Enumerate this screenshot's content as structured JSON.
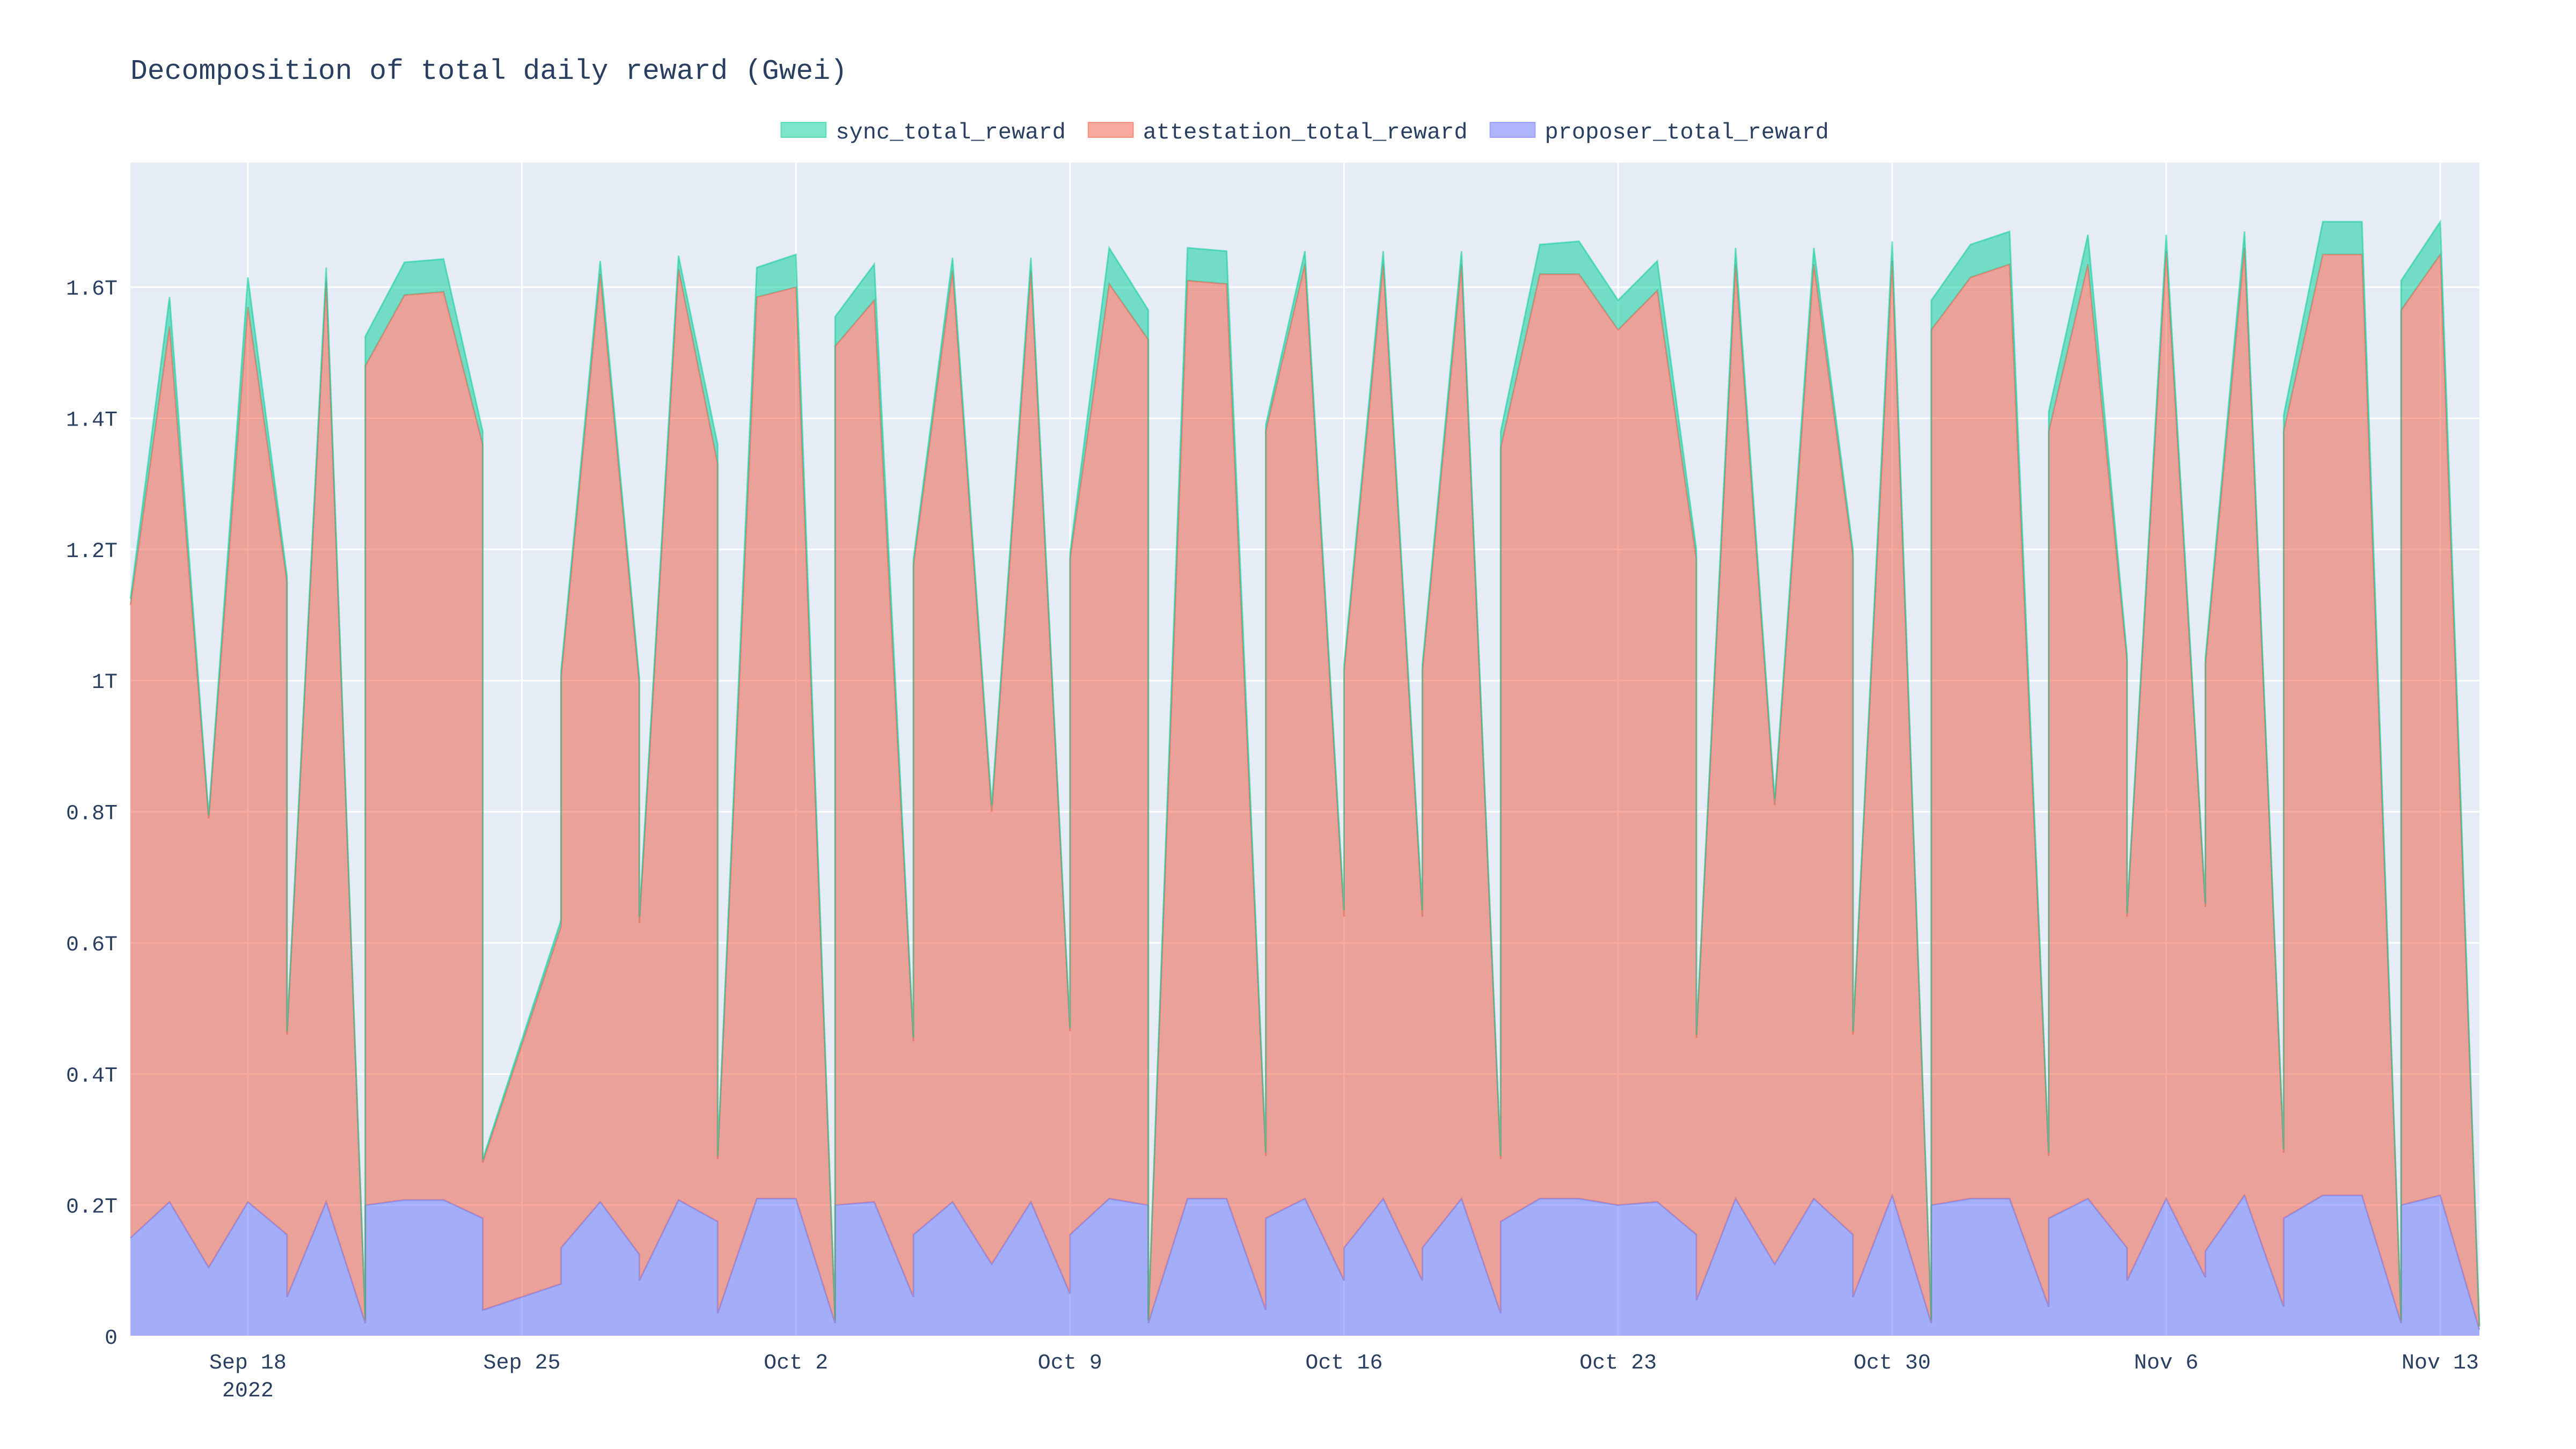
{
  "chart_data": {
    "type": "area",
    "stacked": true,
    "title": "Decomposition of total daily reward (Gwei)",
    "xlabel": "",
    "ylabel": "",
    "x_start": "2022-09-15",
    "x_end": "2022-11-14",
    "ylim": [
      0,
      1.79
    ],
    "y_unit": "T",
    "grid": true,
    "legend_placement": "top-center",
    "x_ticks": [
      {
        "date": "2022-09-18",
        "label": "Sep 18",
        "sublabel": "2022"
      },
      {
        "date": "2022-09-25",
        "label": "Sep 25",
        "sublabel": ""
      },
      {
        "date": "2022-10-02",
        "label": "Oct 2",
        "sublabel": ""
      },
      {
        "date": "2022-10-09",
        "label": "Oct 9",
        "sublabel": ""
      },
      {
        "date": "2022-10-16",
        "label": "Oct 16",
        "sublabel": ""
      },
      {
        "date": "2022-10-23",
        "label": "Oct 23",
        "sublabel": ""
      },
      {
        "date": "2022-10-30",
        "label": "Oct 30",
        "sublabel": ""
      },
      {
        "date": "2022-11-06",
        "label": "Nov 6",
        "sublabel": ""
      },
      {
        "date": "2022-11-13",
        "label": "Nov 13",
        "sublabel": ""
      }
    ],
    "y_ticks": [
      {
        "value": 0,
        "label": "0"
      },
      {
        "value": 0.2,
        "label": "0.2T"
      },
      {
        "value": 0.4,
        "label": "0.4T"
      },
      {
        "value": 0.6,
        "label": "0.6T"
      },
      {
        "value": 0.8,
        "label": "0.8T"
      },
      {
        "value": 1.0,
        "label": "1T"
      },
      {
        "value": 1.2,
        "label": "1.2T"
      },
      {
        "value": 1.4,
        "label": "1.4T"
      },
      {
        "value": 1.6,
        "label": "1.6T"
      }
    ],
    "series": [
      {
        "name": "proposer_total_reward",
        "color": "#636efa",
        "points": [
          [
            "2022-09-15",
            0.15
          ],
          [
            "2022-09-16",
            0.205
          ],
          [
            "2022-09-17",
            0.105
          ],
          [
            "2022-09-18",
            0.205
          ],
          [
            "2022-09-19",
            0.155
          ],
          [
            "2022-09-19",
            0.06
          ],
          [
            "2022-09-20",
            0.205
          ],
          [
            "2022-09-21",
            0.02
          ],
          [
            "2022-09-21",
            0.2
          ],
          [
            "2022-09-22",
            0.208
          ],
          [
            "2022-09-23",
            0.208
          ],
          [
            "2022-09-24",
            0.18
          ],
          [
            "2022-09-24",
            0.04
          ],
          [
            "2022-09-26",
            0.08
          ],
          [
            "2022-09-26",
            0.135
          ],
          [
            "2022-09-27",
            0.205
          ],
          [
            "2022-09-28",
            0.125
          ],
          [
            "2022-09-28",
            0.085
          ],
          [
            "2022-09-29",
            0.208
          ],
          [
            "2022-09-30",
            0.175
          ],
          [
            "2022-09-30",
            0.035
          ],
          [
            "2022-10-01",
            0.21
          ],
          [
            "2022-10-02",
            0.21
          ],
          [
            "2022-10-03",
            0.02
          ],
          [
            "2022-10-03",
            0.2
          ],
          [
            "2022-10-04",
            0.205
          ],
          [
            "2022-10-05",
            0.06
          ],
          [
            "2022-10-05",
            0.155
          ],
          [
            "2022-10-06",
            0.205
          ],
          [
            "2022-10-07",
            0.11
          ],
          [
            "2022-10-08",
            0.205
          ],
          [
            "2022-10-09",
            0.065
          ],
          [
            "2022-10-09",
            0.155
          ],
          [
            "2022-10-10",
            0.21
          ],
          [
            "2022-10-11",
            0.2
          ],
          [
            "2022-10-11",
            0.02
          ],
          [
            "2022-10-12",
            0.21
          ],
          [
            "2022-10-13",
            0.21
          ],
          [
            "2022-10-14",
            0.04
          ],
          [
            "2022-10-14",
            0.18
          ],
          [
            "2022-10-15",
            0.21
          ],
          [
            "2022-10-16",
            0.085
          ],
          [
            "2022-10-16",
            0.135
          ],
          [
            "2022-10-17",
            0.21
          ],
          [
            "2022-10-18",
            0.085
          ],
          [
            "2022-10-18",
            0.135
          ],
          [
            "2022-10-19",
            0.21
          ],
          [
            "2022-10-20",
            0.035
          ],
          [
            "2022-10-20",
            0.175
          ],
          [
            "2022-10-21",
            0.21
          ],
          [
            "2022-10-22",
            0.21
          ],
          [
            "2022-10-23",
            0.2
          ],
          [
            "2022-10-24",
            0.205
          ],
          [
            "2022-10-25",
            0.155
          ],
          [
            "2022-10-25",
            0.055
          ],
          [
            "2022-10-26",
            0.21
          ],
          [
            "2022-10-27",
            0.11
          ],
          [
            "2022-10-28",
            0.21
          ],
          [
            "2022-10-29",
            0.155
          ],
          [
            "2022-10-29",
            0.06
          ],
          [
            "2022-10-30",
            0.215
          ],
          [
            "2022-10-31",
            0.02
          ],
          [
            "2022-10-31",
            0.2
          ],
          [
            "2022-11-01",
            0.21
          ],
          [
            "2022-11-02",
            0.21
          ],
          [
            "2022-11-03",
            0.045
          ],
          [
            "2022-11-03",
            0.18
          ],
          [
            "2022-11-04",
            0.21
          ],
          [
            "2022-11-05",
            0.135
          ],
          [
            "2022-11-05",
            0.085
          ],
          [
            "2022-11-06",
            0.21
          ],
          [
            "2022-11-07",
            0.09
          ],
          [
            "2022-11-07",
            0.13
          ],
          [
            "2022-11-08",
            0.215
          ],
          [
            "2022-11-09",
            0.045
          ],
          [
            "2022-11-09",
            0.18
          ],
          [
            "2022-11-10",
            0.215
          ],
          [
            "2022-11-11",
            0.215
          ],
          [
            "2022-11-12",
            0.02
          ],
          [
            "2022-11-12",
            0.2
          ],
          [
            "2022-11-13",
            0.215
          ],
          [
            "2022-11-14",
            0.01
          ]
        ]
      },
      {
        "name": "attestation_total_reward",
        "color": "#ef553b",
        "points": [
          [
            "2022-09-15",
            0.965
          ],
          [
            "2022-09-16",
            1.335
          ],
          [
            "2022-09-17",
            0.685
          ],
          [
            "2022-09-18",
            1.365
          ],
          [
            "2022-09-19",
            0.995
          ],
          [
            "2022-09-19",
            0.4
          ],
          [
            "2022-09-20",
            1.405
          ],
          [
            "2022-09-21",
            0.005
          ],
          [
            "2022-09-21",
            1.28
          ],
          [
            "2022-09-22",
            1.38
          ],
          [
            "2022-09-23",
            1.385
          ],
          [
            "2022-09-24",
            1.18
          ],
          [
            "2022-09-24",
            0.225
          ],
          [
            "2022-09-26",
            0.545
          ],
          [
            "2022-09-26",
            0.87
          ],
          [
            "2022-09-27",
            1.415
          ],
          [
            "2022-09-28",
            0.87
          ],
          [
            "2022-09-28",
            0.545
          ],
          [
            "2022-09-29",
            1.42
          ],
          [
            "2022-09-30",
            1.155
          ],
          [
            "2022-09-30",
            0.235
          ],
          [
            "2022-10-01",
            1.375
          ],
          [
            "2022-10-02",
            1.39
          ],
          [
            "2022-10-03",
            0.005
          ],
          [
            "2022-10-03",
            1.31
          ],
          [
            "2022-10-04",
            1.375
          ],
          [
            "2022-10-05",
            0.39
          ],
          [
            "2022-10-05",
            1.02
          ],
          [
            "2022-10-06",
            1.42
          ],
          [
            "2022-10-07",
            0.69
          ],
          [
            "2022-10-08",
            1.42
          ],
          [
            "2022-10-09",
            0.4
          ],
          [
            "2022-10-09",
            1.03
          ],
          [
            "2022-10-10",
            1.395
          ],
          [
            "2022-10-11",
            1.32
          ],
          [
            "2022-10-11",
            0.005
          ],
          [
            "2022-10-12",
            1.4
          ],
          [
            "2022-10-13",
            1.395
          ],
          [
            "2022-10-14",
            0.235
          ],
          [
            "2022-10-14",
            1.2
          ],
          [
            "2022-10-15",
            1.425
          ],
          [
            "2022-10-16",
            0.555
          ],
          [
            "2022-10-16",
            0.88
          ],
          [
            "2022-10-17",
            1.425
          ],
          [
            "2022-10-18",
            0.555
          ],
          [
            "2022-10-18",
            0.88
          ],
          [
            "2022-10-19",
            1.425
          ],
          [
            "2022-10-20",
            0.235
          ],
          [
            "2022-10-20",
            1.18
          ],
          [
            "2022-10-21",
            1.41
          ],
          [
            "2022-10-22",
            1.41
          ],
          [
            "2022-10-23",
            1.335
          ],
          [
            "2022-10-24",
            1.39
          ],
          [
            "2022-10-25",
            1.03
          ],
          [
            "2022-10-25",
            0.4
          ],
          [
            "2022-10-26",
            1.425
          ],
          [
            "2022-10-27",
            0.7
          ],
          [
            "2022-10-28",
            1.425
          ],
          [
            "2022-10-29",
            1.035
          ],
          [
            "2022-10-29",
            0.4
          ],
          [
            "2022-10-30",
            1.425
          ],
          [
            "2022-10-31",
            0.005
          ],
          [
            "2022-10-31",
            1.335
          ],
          [
            "2022-11-01",
            1.405
          ],
          [
            "2022-11-02",
            1.425
          ],
          [
            "2022-11-03",
            0.23
          ],
          [
            "2022-11-03",
            1.2
          ],
          [
            "2022-11-04",
            1.425
          ],
          [
            "2022-11-05",
            0.895
          ],
          [
            "2022-11-05",
            0.555
          ],
          [
            "2022-11-06",
            1.445
          ],
          [
            "2022-11-07",
            0.565
          ],
          [
            "2022-11-07",
            0.895
          ],
          [
            "2022-11-08",
            1.445
          ],
          [
            "2022-11-09",
            0.235
          ],
          [
            "2022-11-09",
            1.2
          ],
          [
            "2022-11-10",
            1.435
          ],
          [
            "2022-11-11",
            1.435
          ],
          [
            "2022-11-12",
            0.005
          ],
          [
            "2022-11-12",
            1.365
          ],
          [
            "2022-11-13",
            1.435
          ],
          [
            "2022-11-14",
            0.005
          ]
        ]
      },
      {
        "name": "sync_total_reward",
        "color": "#00cc96",
        "points": [
          [
            "2022-09-15",
            0.01
          ],
          [
            "2022-09-16",
            0.045
          ],
          [
            "2022-09-17",
            0.005
          ],
          [
            "2022-09-18",
            0.045
          ],
          [
            "2022-09-19",
            0.01
          ],
          [
            "2022-09-19",
            0.005
          ],
          [
            "2022-09-20",
            0.02
          ],
          [
            "2022-09-21",
            0.0
          ],
          [
            "2022-09-21",
            0.045
          ],
          [
            "2022-09-22",
            0.05
          ],
          [
            "2022-09-23",
            0.05
          ],
          [
            "2022-09-24",
            0.02
          ],
          [
            "2022-09-24",
            0.005
          ],
          [
            "2022-09-26",
            0.01
          ],
          [
            "2022-09-26",
            0.01
          ],
          [
            "2022-09-27",
            0.02
          ],
          [
            "2022-09-28",
            0.01
          ],
          [
            "2022-09-28",
            0.01
          ],
          [
            "2022-09-29",
            0.02
          ],
          [
            "2022-09-30",
            0.03
          ],
          [
            "2022-09-30",
            0.005
          ],
          [
            "2022-10-01",
            0.045
          ],
          [
            "2022-10-02",
            0.05
          ],
          [
            "2022-10-03",
            0.0
          ],
          [
            "2022-10-03",
            0.045
          ],
          [
            "2022-10-04",
            0.055
          ],
          [
            "2022-10-05",
            0.005
          ],
          [
            "2022-10-05",
            0.01
          ],
          [
            "2022-10-06",
            0.02
          ],
          [
            "2022-10-07",
            0.01
          ],
          [
            "2022-10-08",
            0.02
          ],
          [
            "2022-10-09",
            0.005
          ],
          [
            "2022-10-09",
            0.01
          ],
          [
            "2022-10-10",
            0.055
          ],
          [
            "2022-10-11",
            0.045
          ],
          [
            "2022-10-11",
            0.0
          ],
          [
            "2022-10-12",
            0.05
          ],
          [
            "2022-10-13",
            0.05
          ],
          [
            "2022-10-14",
            0.005
          ],
          [
            "2022-10-14",
            0.01
          ],
          [
            "2022-10-15",
            0.02
          ],
          [
            "2022-10-16",
            0.01
          ],
          [
            "2022-10-16",
            0.01
          ],
          [
            "2022-10-17",
            0.02
          ],
          [
            "2022-10-18",
            0.01
          ],
          [
            "2022-10-18",
            0.01
          ],
          [
            "2022-10-19",
            0.02
          ],
          [
            "2022-10-20",
            0.005
          ],
          [
            "2022-10-20",
            0.025
          ],
          [
            "2022-10-21",
            0.045
          ],
          [
            "2022-10-22",
            0.05
          ],
          [
            "2022-10-23",
            0.045
          ],
          [
            "2022-10-24",
            0.045
          ],
          [
            "2022-10-25",
            0.015
          ],
          [
            "2022-10-25",
            0.005
          ],
          [
            "2022-10-26",
            0.025
          ],
          [
            "2022-10-27",
            0.01
          ],
          [
            "2022-10-28",
            0.025
          ],
          [
            "2022-10-29",
            0.01
          ],
          [
            "2022-10-29",
            0.005
          ],
          [
            "2022-10-30",
            0.03
          ],
          [
            "2022-10-31",
            0.0
          ],
          [
            "2022-10-31",
            0.045
          ],
          [
            "2022-11-01",
            0.05
          ],
          [
            "2022-11-02",
            0.05
          ],
          [
            "2022-11-03",
            0.005
          ],
          [
            "2022-11-03",
            0.03
          ],
          [
            "2022-11-04",
            0.045
          ],
          [
            "2022-11-05",
            0.01
          ],
          [
            "2022-11-05",
            0.005
          ],
          [
            "2022-11-06",
            0.025
          ],
          [
            "2022-11-07",
            0.005
          ],
          [
            "2022-11-07",
            0.01
          ],
          [
            "2022-11-08",
            0.025
          ],
          [
            "2022-11-09",
            0.005
          ],
          [
            "2022-11-09",
            0.025
          ],
          [
            "2022-11-10",
            0.05
          ],
          [
            "2022-11-11",
            0.05
          ],
          [
            "2022-11-12",
            0.0
          ],
          [
            "2022-11-12",
            0.045
          ],
          [
            "2022-11-13",
            0.05
          ],
          [
            "2022-11-14",
            0.0
          ]
        ]
      }
    ],
    "legend_order": [
      "sync_total_reward",
      "attestation_total_reward",
      "proposer_total_reward"
    ]
  }
}
